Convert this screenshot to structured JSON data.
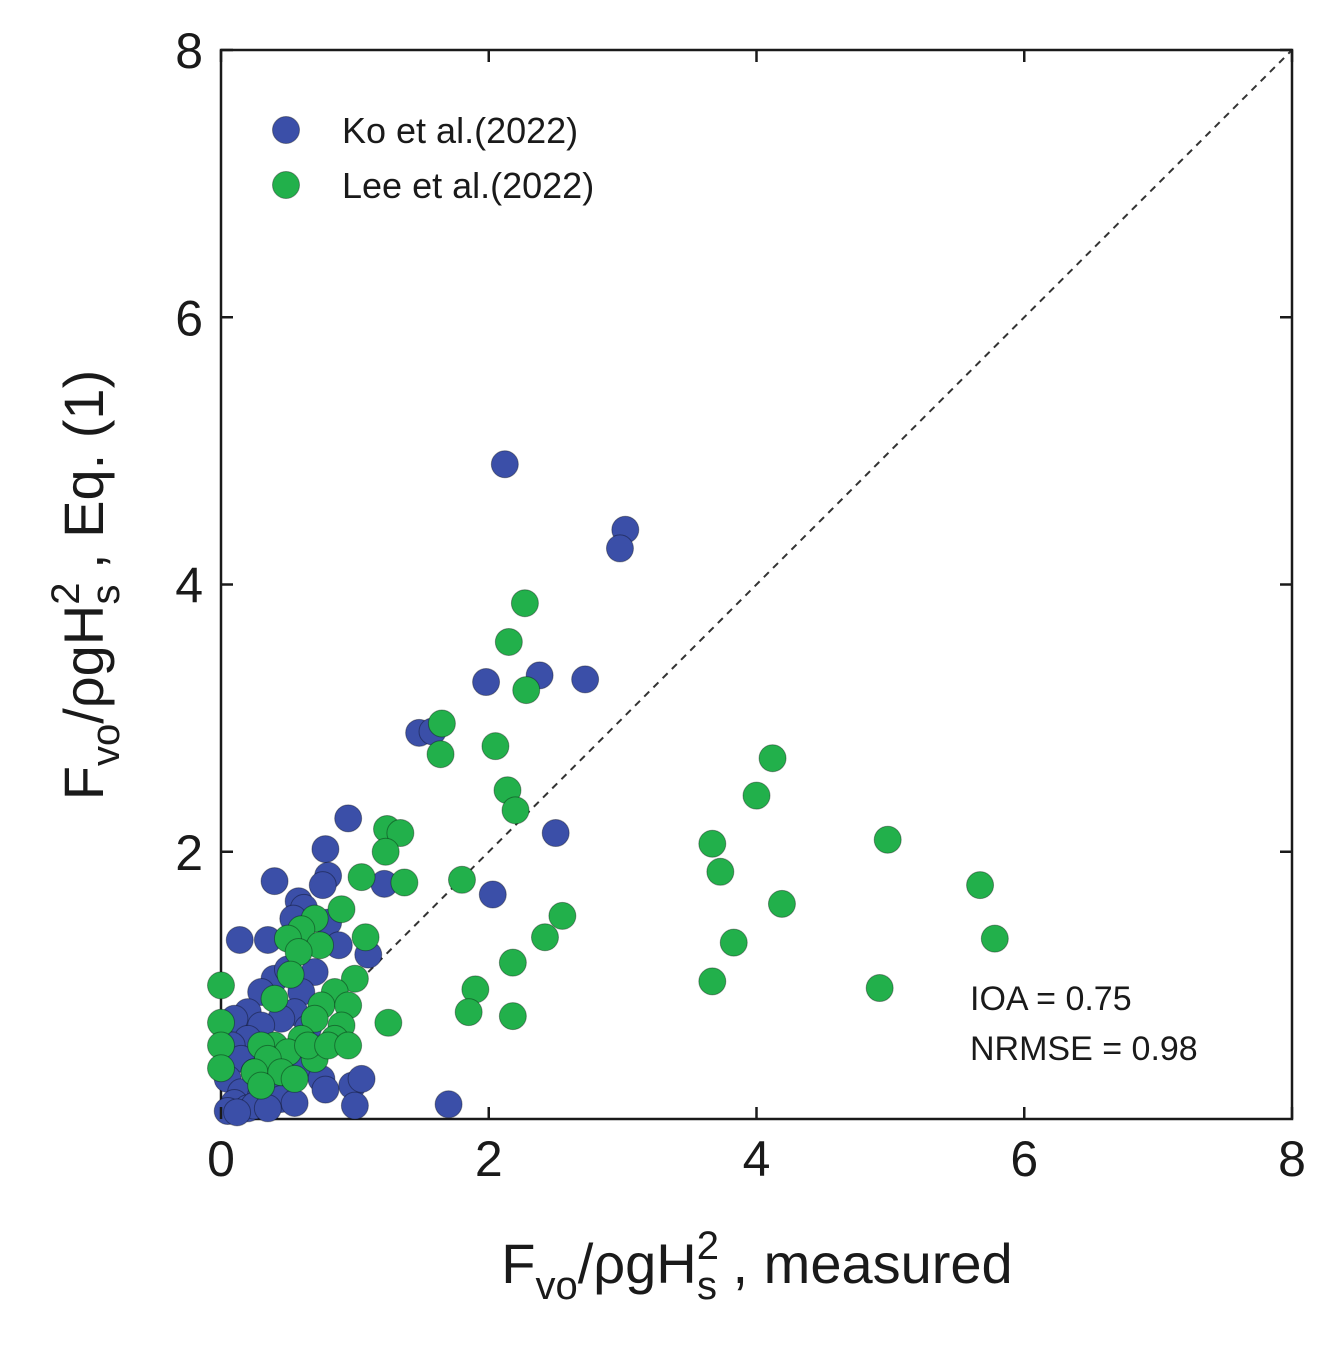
{
  "chart_data": {
    "type": "scatter",
    "xlim": [
      0,
      8
    ],
    "ylim": [
      0,
      8
    ],
    "xticks": [
      0,
      2,
      4,
      6,
      8
    ],
    "yticks": [
      2,
      4,
      6,
      8
    ],
    "xtick_labels": [
      "0",
      "2",
      "4",
      "6",
      "8"
    ],
    "ytick_labels": [
      "2",
      "4",
      "6",
      "8"
    ],
    "xlabel": {
      "main": "F",
      "sub": "vo",
      "mid": "/ρgH",
      "sup": "2",
      "sub2": "s",
      "tail": " , measured"
    },
    "ylabel": {
      "main": "F",
      "sub": "vo",
      "mid": "/ρgH",
      "sup": "2",
      "sub2": "s",
      "tail": " , Eq. (1)"
    },
    "reference_line": "y = x",
    "grid": false,
    "legend_position": "top-left",
    "annotations": [
      "IOA = 0.75",
      "NRMSE = 0.98"
    ],
    "series": [
      {
        "name": "Ko et al.(2022)",
        "color": "#3b4fa8",
        "points": [
          [
            2.12,
            4.9
          ],
          [
            3.02,
            4.41
          ],
          [
            2.98,
            4.27
          ],
          [
            1.98,
            3.27
          ],
          [
            2.38,
            3.32
          ],
          [
            2.72,
            3.29
          ],
          [
            1.48,
            2.89
          ],
          [
            1.58,
            2.9
          ],
          [
            2.5,
            2.14
          ],
          [
            0.95,
            2.25
          ],
          [
            0.78,
            2.02
          ],
          [
            0.8,
            1.82
          ],
          [
            0.76,
            1.75
          ],
          [
            1.22,
            1.76
          ],
          [
            0.4,
            1.78
          ],
          [
            2.03,
            1.68
          ],
          [
            0.58,
            1.63
          ],
          [
            0.62,
            1.58
          ],
          [
            0.54,
            1.5
          ],
          [
            0.8,
            1.47
          ],
          [
            0.88,
            1.3
          ],
          [
            1.1,
            1.23
          ],
          [
            0.14,
            1.34
          ],
          [
            0.35,
            1.34
          ],
          [
            0.4,
            1.05
          ],
          [
            0.5,
            1.12
          ],
          [
            0.7,
            1.1
          ],
          [
            0.3,
            0.95
          ],
          [
            0.6,
            0.95
          ],
          [
            0.2,
            0.8
          ],
          [
            0.1,
            0.75
          ],
          [
            0.55,
            0.8
          ],
          [
            0.45,
            0.75
          ],
          [
            0.3,
            0.7
          ],
          [
            0.65,
            0.68
          ],
          [
            0.2,
            0.6
          ],
          [
            0.08,
            0.55
          ],
          [
            0.35,
            0.5
          ],
          [
            0.15,
            0.45
          ],
          [
            0.5,
            0.45
          ],
          [
            0.25,
            0.35
          ],
          [
            0.05,
            0.3
          ],
          [
            0.6,
            0.38
          ],
          [
            0.75,
            0.3
          ],
          [
            0.4,
            0.28
          ],
          [
            0.15,
            0.2
          ],
          [
            0.3,
            0.18
          ],
          [
            0.1,
            0.12
          ],
          [
            0.05,
            0.06
          ],
          [
            0.2,
            0.08
          ],
          [
            0.45,
            0.15
          ],
          [
            0.78,
            0.22
          ],
          [
            0.98,
            0.25
          ],
          [
            1.05,
            0.3
          ],
          [
            1.0,
            0.1
          ],
          [
            0.55,
            0.12
          ],
          [
            0.25,
            0.1
          ],
          [
            1.7,
            0.11
          ],
          [
            0.12,
            0.05
          ],
          [
            0.35,
            0.08
          ]
        ]
      },
      {
        "name": "Lee et al.(2022)",
        "color": "#22b04b",
        "points": [
          [
            2.27,
            3.86
          ],
          [
            2.15,
            3.57
          ],
          [
            2.28,
            3.21
          ],
          [
            1.65,
            2.96
          ],
          [
            1.64,
            2.73
          ],
          [
            2.05,
            2.79
          ],
          [
            2.14,
            2.46
          ],
          [
            2.2,
            2.31
          ],
          [
            4.12,
            2.7
          ],
          [
            4.0,
            2.42
          ],
          [
            1.24,
            2.17
          ],
          [
            1.34,
            2.14
          ],
          [
            1.23,
            2.0
          ],
          [
            1.05,
            1.81
          ],
          [
            1.37,
            1.77
          ],
          [
            1.8,
            1.79
          ],
          [
            3.67,
            2.06
          ],
          [
            3.73,
            1.85
          ],
          [
            4.98,
            2.09
          ],
          [
            5.67,
            1.75
          ],
          [
            4.19,
            1.61
          ],
          [
            2.55,
            1.52
          ],
          [
            2.42,
            1.36
          ],
          [
            5.78,
            1.35
          ],
          [
            3.83,
            1.32
          ],
          [
            0.9,
            1.57
          ],
          [
            0.7,
            1.5
          ],
          [
            0.6,
            1.42
          ],
          [
            0.5,
            1.35
          ],
          [
            1.08,
            1.36
          ],
          [
            0.74,
            1.3
          ],
          [
            0.58,
            1.25
          ],
          [
            2.18,
            1.17
          ],
          [
            0.52,
            1.08
          ],
          [
            0.0,
            1.0
          ],
          [
            1.0,
            1.05
          ],
          [
            0.85,
            0.95
          ],
          [
            0.4,
            0.9
          ],
          [
            3.67,
            1.03
          ],
          [
            4.92,
            0.98
          ],
          [
            1.9,
            0.97
          ],
          [
            1.85,
            0.8
          ],
          [
            2.18,
            0.77
          ],
          [
            1.25,
            0.72
          ],
          [
            0.0,
            0.72
          ],
          [
            0.75,
            0.85
          ],
          [
            0.95,
            0.85
          ],
          [
            0.7,
            0.75
          ],
          [
            0.9,
            0.7
          ],
          [
            0.85,
            0.6
          ],
          [
            0.6,
            0.6
          ],
          [
            0.4,
            0.55
          ],
          [
            0.3,
            0.55
          ],
          [
            0.5,
            0.5
          ],
          [
            0.35,
            0.45
          ],
          [
            0.0,
            0.55
          ],
          [
            0.25,
            0.35
          ],
          [
            0.45,
            0.35
          ],
          [
            0.0,
            0.38
          ],
          [
            0.3,
            0.25
          ],
          [
            0.55,
            0.3
          ],
          [
            0.7,
            0.45
          ],
          [
            0.65,
            0.55
          ],
          [
            0.8,
            0.55
          ],
          [
            0.95,
            0.55
          ]
        ]
      }
    ]
  }
}
